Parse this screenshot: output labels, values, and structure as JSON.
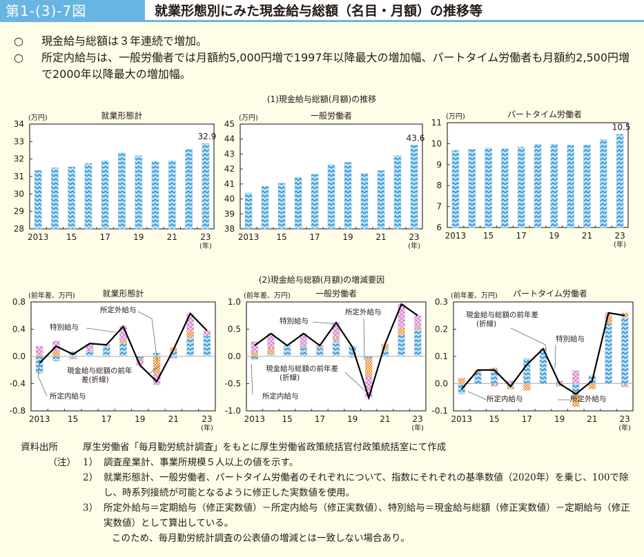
{
  "header": {
    "figure_number": "第1-(3)-7図",
    "title": "就業形態別にみた現金給与総額（名目・月額）の推移等"
  },
  "summary": {
    "bullet": "○",
    "points": [
      "現金給与総額は３年連続で増加。",
      "所定内給与は、一般労働者では月額約5,000円増で1997年以降最大の増加幅、パートタイム労働者も月額約2,500円増で2000年以降最大の増加幅。"
    ]
  },
  "sections": {
    "top_title": "(1)現金給与総額(月額)の推移",
    "bottom_title": "(2)現金給与総額(月額)の増減要因"
  },
  "colors": {
    "header_bg": "#68b5e2",
    "page_bg": "#fefde8",
    "bar_blue": "#3a9ad9",
    "overtime_orange": "#f39a3a",
    "bonus_pink": "#d784cf",
    "line_black": "#000000"
  },
  "chart_data": [
    {
      "type": "bar",
      "title": "就業形態計",
      "unit_label": "(万円)",
      "xlabel": "(年)",
      "categories": [
        "2013",
        "2014",
        "2015",
        "2016",
        "2017",
        "2018",
        "2019",
        "2020",
        "2021",
        "2022",
        "2023"
      ],
      "xtick_labels": [
        "2013",
        "",
        "15",
        "",
        "17",
        "",
        "19",
        "",
        "21",
        "",
        "23"
      ],
      "values": [
        31.35,
        31.5,
        31.55,
        31.75,
        31.9,
        32.35,
        32.2,
        31.85,
        31.9,
        32.55,
        32.9
      ],
      "ylim": [
        28,
        34
      ],
      "yticks": [
        28,
        29,
        30,
        31,
        32,
        33,
        34
      ],
      "ytick_labels": [
        "28",
        "29",
        "30",
        "31",
        "32",
        "33",
        "34"
      ],
      "data_label": {
        "index": 10,
        "text": "32.9"
      }
    },
    {
      "type": "bar",
      "title": "一般労働者",
      "unit_label": "(万円)",
      "xlabel": "(年)",
      "categories": [
        "2013",
        "2014",
        "2015",
        "2016",
        "2017",
        "2018",
        "2019",
        "2020",
        "2021",
        "2022",
        "2023"
      ],
      "xtick_labels": [
        "2013",
        "",
        "15",
        "",
        "17",
        "",
        "19",
        "",
        "21",
        "",
        "23"
      ],
      "values": [
        40.4,
        40.85,
        41.05,
        41.45,
        41.65,
        42.3,
        42.45,
        41.7,
        41.9,
        42.9,
        43.6
      ],
      "ylim": [
        38,
        45
      ],
      "yticks": [
        38,
        39,
        40,
        41,
        42,
        43,
        44,
        45
      ],
      "ytick_labels": [
        "38",
        "39",
        "40",
        "41",
        "42",
        "43",
        "44",
        "45"
      ],
      "data_label": {
        "index": 10,
        "text": "43.6"
      }
    },
    {
      "type": "bar",
      "title": "パートタイム労働者",
      "unit_label": "(万円)",
      "xlabel": "(年)",
      "categories": [
        "2013",
        "2014",
        "2015",
        "2016",
        "2017",
        "2018",
        "2019",
        "2020",
        "2021",
        "2022",
        "2023"
      ],
      "xtick_labels": [
        "2013",
        "",
        "15",
        "",
        "17",
        "",
        "19",
        "",
        "21",
        "",
        "23"
      ],
      "values": [
        9.68,
        9.73,
        9.79,
        9.77,
        9.84,
        9.97,
        9.97,
        9.93,
        9.94,
        10.2,
        10.45
      ],
      "ylim": [
        6,
        11
      ],
      "yticks": [
        6,
        7,
        8,
        9,
        10,
        11
      ],
      "ytick_labels": [
        "6",
        "7",
        "8",
        "9",
        "10",
        "11"
      ],
      "data_label": {
        "index": 10,
        "text": "10.5"
      }
    },
    {
      "type": "bar",
      "stacked": true,
      "title": "就業形態計",
      "unit_label": "(前年差、万円)",
      "xlabel": "(年)",
      "categories": [
        "2013",
        "2014",
        "2015",
        "2016",
        "2017",
        "2018",
        "2019",
        "2020",
        "2021",
        "2022",
        "2023"
      ],
      "xtick_labels": [
        "2013",
        "",
        "15",
        "",
        "17",
        "",
        "19",
        "",
        "21",
        "",
        "23"
      ],
      "ylim": [
        -0.8,
        0.8
      ],
      "yticks": [
        -0.8,
        -0.4,
        0.0,
        0.4,
        0.8
      ],
      "ytick_labels": [
        "-0.8",
        "-0.4",
        "0.0",
        "0.4",
        "0.8"
      ],
      "series": [
        {
          "name": "所定内給与",
          "values": [
            -0.25,
            -0.07,
            0.07,
            0.08,
            0.15,
            0.2,
            -0.03,
            0.05,
            0.08,
            0.27,
            0.3
          ]
        },
        {
          "name": "所定外給与",
          "values": [
            0.03,
            0.08,
            -0.02,
            0.0,
            -0.01,
            0.04,
            -0.02,
            -0.25,
            0.05,
            0.1,
            0.0
          ]
        },
        {
          "name": "特別給与",
          "values": [
            0.12,
            0.15,
            -0.02,
            0.1,
            0.03,
            0.2,
            -0.08,
            -0.17,
            -0.03,
            0.26,
            0.08
          ]
        }
      ],
      "line": {
        "name": "現金給与総額の前年差(折線)",
        "values": [
          -0.1,
          0.15,
          0.03,
          0.19,
          0.17,
          0.44,
          -0.13,
          -0.37,
          0.1,
          0.63,
          0.38
        ]
      },
      "annotations": [
        {
          "text": "所定外給与"
        },
        {
          "text": "特別給与"
        },
        {
          "text": "現金給与総額の前年"
        },
        {
          "text": "差(折線)"
        },
        {
          "text": "所定内給与"
        }
      ]
    },
    {
      "type": "bar",
      "stacked": true,
      "title": "一般労働者",
      "unit_label": "(前年差、万円)",
      "xlabel": "(年)",
      "categories": [
        "2013",
        "2014",
        "2015",
        "2016",
        "2017",
        "2018",
        "2019",
        "2020",
        "2021",
        "2022",
        "2023"
      ],
      "xtick_labels": [
        "2013",
        "",
        "15",
        "",
        "17",
        "",
        "19",
        "",
        "21",
        "",
        "23"
      ],
      "ylim": [
        -1.0,
        1.0
      ],
      "yticks": [
        -1.0,
        -0.5,
        0.0,
        0.5,
        1.0
      ],
      "ytick_labels": [
        "-1.0",
        "-0.5",
        "0.0",
        "0.5",
        "1.0"
      ],
      "series": [
        {
          "name": "所定内給与",
          "values": [
            -0.06,
            0.04,
            0.2,
            0.15,
            0.15,
            0.28,
            0.18,
            -0.03,
            0.12,
            0.4,
            0.5
          ]
        },
        {
          "name": "所定外給与",
          "values": [
            0.07,
            0.1,
            0.0,
            0.02,
            0.02,
            0.05,
            -0.02,
            -0.35,
            0.1,
            0.13,
            0.04
          ]
        },
        {
          "name": "特別給与",
          "values": [
            0.2,
            0.28,
            0.0,
            0.25,
            0.03,
            0.3,
            0.01,
            -0.38,
            0.01,
            0.43,
            0.21
          ]
        }
      ],
      "line": {
        "name": "現金給与総額の前年差(折線)",
        "values": [
          0.2,
          0.42,
          0.2,
          0.42,
          0.2,
          0.62,
          0.17,
          -0.76,
          0.23,
          0.96,
          0.75
        ]
      },
      "annotations": [
        {
          "text": "所定外給与"
        },
        {
          "text": "特別給与"
        },
        {
          "text": "現金給与総額の前年差"
        },
        {
          "text": "(折線)"
        },
        {
          "text": "所定内給与"
        }
      ]
    },
    {
      "type": "bar",
      "stacked": true,
      "title": "パートタイム労働者",
      "unit_label": "(前年差、万円)",
      "xlabel": "(年)",
      "categories": [
        "2013",
        "2014",
        "2015",
        "2016",
        "2017",
        "2018",
        "2019",
        "2020",
        "2021",
        "2022",
        "2023"
      ],
      "xtick_labels": [
        "2013",
        "",
        "15",
        "",
        "17",
        "",
        "19",
        "",
        "21",
        "",
        "23"
      ],
      "ylim": [
        -0.1,
        0.3
      ],
      "yticks": [
        -0.1,
        0.0,
        0.1,
        0.2,
        0.3
      ],
      "ytick_labels": [
        "-0.1",
        "0.0",
        "0.1",
        "0.2",
        "0.3"
      ],
      "series": [
        {
          "name": "所定内給与",
          "values": [
            -0.038,
            0.04,
            0.05,
            -0.01,
            0.093,
            0.127,
            -0.005,
            -0.04,
            0.03,
            0.22,
            0.245
          ]
        },
        {
          "name": "所定外給与",
          "values": [
            0.02,
            0.01,
            0.008,
            -0.01,
            -0.025,
            0.0,
            -0.005,
            -0.045,
            -0.02,
            0.03,
            0.015
          ]
        },
        {
          "name": "特別給与",
          "values": [
            0.0,
            0.0,
            -0.01,
            0.01,
            0.0,
            0.002,
            0.01,
            0.048,
            0.0,
            0.01,
            -0.012
          ]
        }
      ],
      "line": {
        "name": "現金給与総額の前年差(折線)",
        "values": [
          -0.02,
          0.05,
          0.05,
          -0.01,
          0.07,
          0.128,
          0.0,
          -0.038,
          0.01,
          0.26,
          0.25
        ]
      },
      "annotations": [
        {
          "text": "現金給与総額の前年差"
        },
        {
          "text": "(折線)"
        },
        {
          "text": "特別給与"
        },
        {
          "text": "所定内給与"
        },
        {
          "text": "所定外給与"
        }
      ]
    }
  ],
  "notes": {
    "source_label": "資料出所",
    "source_text": "厚生労働省「毎月勤労統計調査」をもとに厚生労働省政策統括官付政策統括室にて作成",
    "notes_label": "（注）",
    "items": [
      {
        "num": "1）",
        "text": "調査産業計、事業所規模５人以上の値を示す。"
      },
      {
        "num": "2）",
        "text": "就業形態計、一般労働者、パートタイム労働者のそれぞれについて、指数にそれぞれの基準数値（2020年）を乗じ、100で除し、時系列接続が可能となるように修正した実数値を使用。"
      },
      {
        "num": "3）",
        "text": "所定外給与＝定期給与（修正実数値）－所定内給与（修正実数値）、特別給与＝現金給与総額（修正実数値）－定期給与（修正実数値）として算出している。"
      },
      {
        "num": "",
        "text": "このため、毎月勤労統計調査の公表値の増減とは一致しない場合あり。"
      }
    ]
  }
}
